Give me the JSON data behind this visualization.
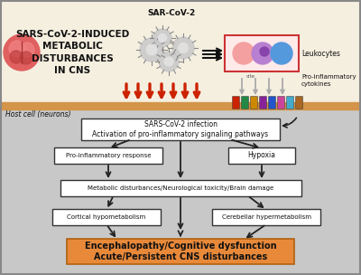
{
  "bg_top": "#f5efe0",
  "bg_bottom": "#c8c8c8",
  "separator_color": "#d4954a",
  "top_title": "SARS-CoV-2-INDUCED\nMETABOLIC\nDISTURBANCES\nIN CNS",
  "sar_cov2_label": "SAR-CoV-2",
  "leukocytes_label": "Leukocytes",
  "pro_inflam_cyto_label": "Pro-inflammatory\ncytokines",
  "host_cell_label": "Host cell (neurons)",
  "box1_text": "SARS-CoV-2 infection\nActivation of pro-inflammatory signaling pathways",
  "box2_text": "Pro-inflammatory response",
  "box3_text": "Hypoxia",
  "box4_text": "Metabolic disturbances/Neurological toxicity/Brain damage",
  "box5_text": "Cortical hypometabolism",
  "box6_text": "Cerebellar hypermetabolism",
  "box7_text": "Encephalopathy/Cognitive dysfunction\nAcute/Persistent CNS disturbances",
  "bottom_box_fill": "#e8893a",
  "bottom_box_edge": "#b06010",
  "red_arrow": "#cc2200",
  "dark_arrow": "#222222",
  "gray_arrow": "#999999",
  "figsize": [
    4.0,
    3.04
  ],
  "dpi": 100
}
